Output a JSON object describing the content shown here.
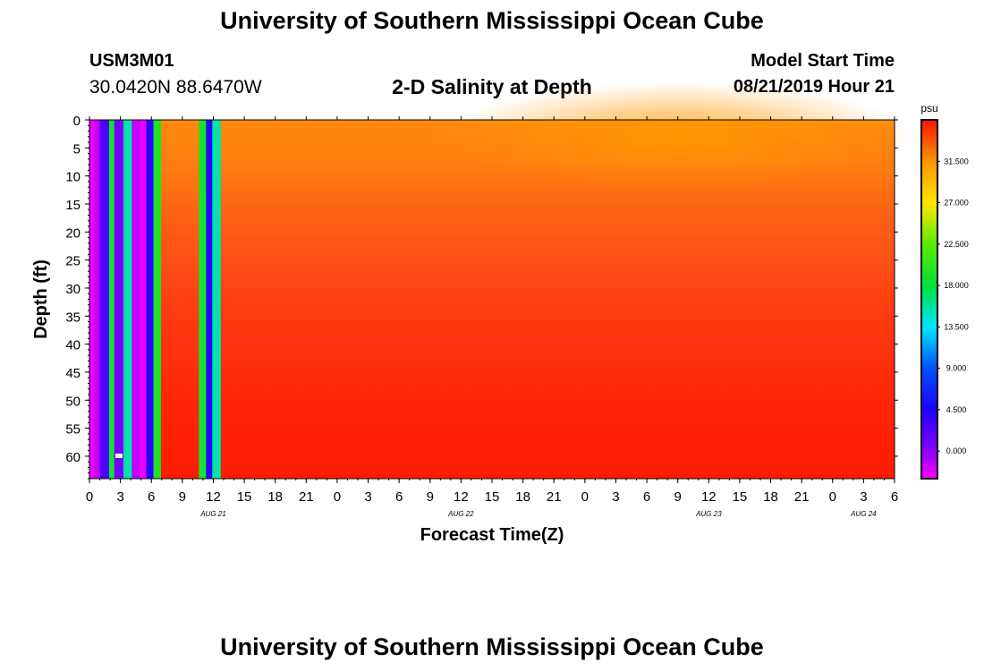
{
  "header": {
    "title_top": "University of Southern Mississippi Ocean Cube",
    "title_bottom": "University of Southern Mississippi Ocean Cube",
    "station_id": "USM3M01",
    "coordinates": "30.0420N 88.6470W",
    "plot_title": "2-D Salinity at Depth",
    "model_start_label": "Model Start Time",
    "model_start_value": "08/21/2019 Hour 21"
  },
  "chart_data": {
    "type": "heatmap",
    "title": "2-D Salinity at Depth",
    "xlabel": "Forecast Time(Z)",
    "ylabel": "Depth (ft)",
    "y_ticks": [
      "0",
      "5",
      "10",
      "15",
      "20",
      "25",
      "30",
      "35",
      "40",
      "45",
      "50",
      "55",
      "60"
    ],
    "y_range": [
      0,
      64
    ],
    "x_ticks": [
      "0",
      "3",
      "6",
      "9",
      "12",
      "15",
      "18",
      "21",
      "0",
      "3",
      "6",
      "9",
      "12",
      "15",
      "18",
      "21",
      "0",
      "3",
      "6",
      "9",
      "12",
      "15",
      "18",
      "21",
      "0",
      "3",
      "6"
    ],
    "x_range_hours": [
      0,
      78
    ],
    "date_labels": [
      {
        "label": "AUG 21",
        "hour": 12
      },
      {
        "label": "AUG 22",
        "hour": 36
      },
      {
        "label": "AUG 23",
        "hour": 60
      },
      {
        "label": "AUG 24",
        "hour": 75
      }
    ],
    "colorbar": {
      "unit": "psu",
      "labels": [
        "31.500",
        "27.000",
        "22.500",
        "18.000",
        "13.500",
        "9.000",
        "4.500",
        "0.000"
      ],
      "range": [
        -3,
        36
      ]
    },
    "bands": [
      {
        "from_hour": 0.0,
        "to_hour": 0.5,
        "value": -2.5
      },
      {
        "from_hour": 0.5,
        "to_hour": 1.0,
        "value": -1.5
      },
      {
        "from_hour": 1.0,
        "to_hour": 1.9,
        "value": 2.5
      },
      {
        "from_hour": 1.9,
        "to_hour": 2.4,
        "value": 19.0
      },
      {
        "from_hour": 2.4,
        "to_hour": 3.3,
        "value": 1.0
      },
      {
        "from_hour": 3.3,
        "to_hour": 4.1,
        "value": 15.5
      },
      {
        "from_hour": 4.1,
        "to_hour": 4.9,
        "value": -1.5
      },
      {
        "from_hour": 4.9,
        "to_hour": 5.5,
        "value": -2.5
      },
      {
        "from_hour": 5.5,
        "to_hour": 6.2,
        "value": 4.0
      },
      {
        "from_hour": 6.2,
        "to_hour": 6.9,
        "value": 19.5
      },
      {
        "from_hour": 10.6,
        "to_hour": 11.3,
        "value": 19.0
      },
      {
        "from_hour": 11.3,
        "to_hour": 11.9,
        "value": 4.0
      },
      {
        "from_hour": 11.9,
        "to_hour": 12.7,
        "value": 15.5
      }
    ],
    "background_field": {
      "surface_value": 31.8,
      "bottom_value": 35.2,
      "max_surface_hour": 57,
      "start_hour": 6.9
    }
  }
}
